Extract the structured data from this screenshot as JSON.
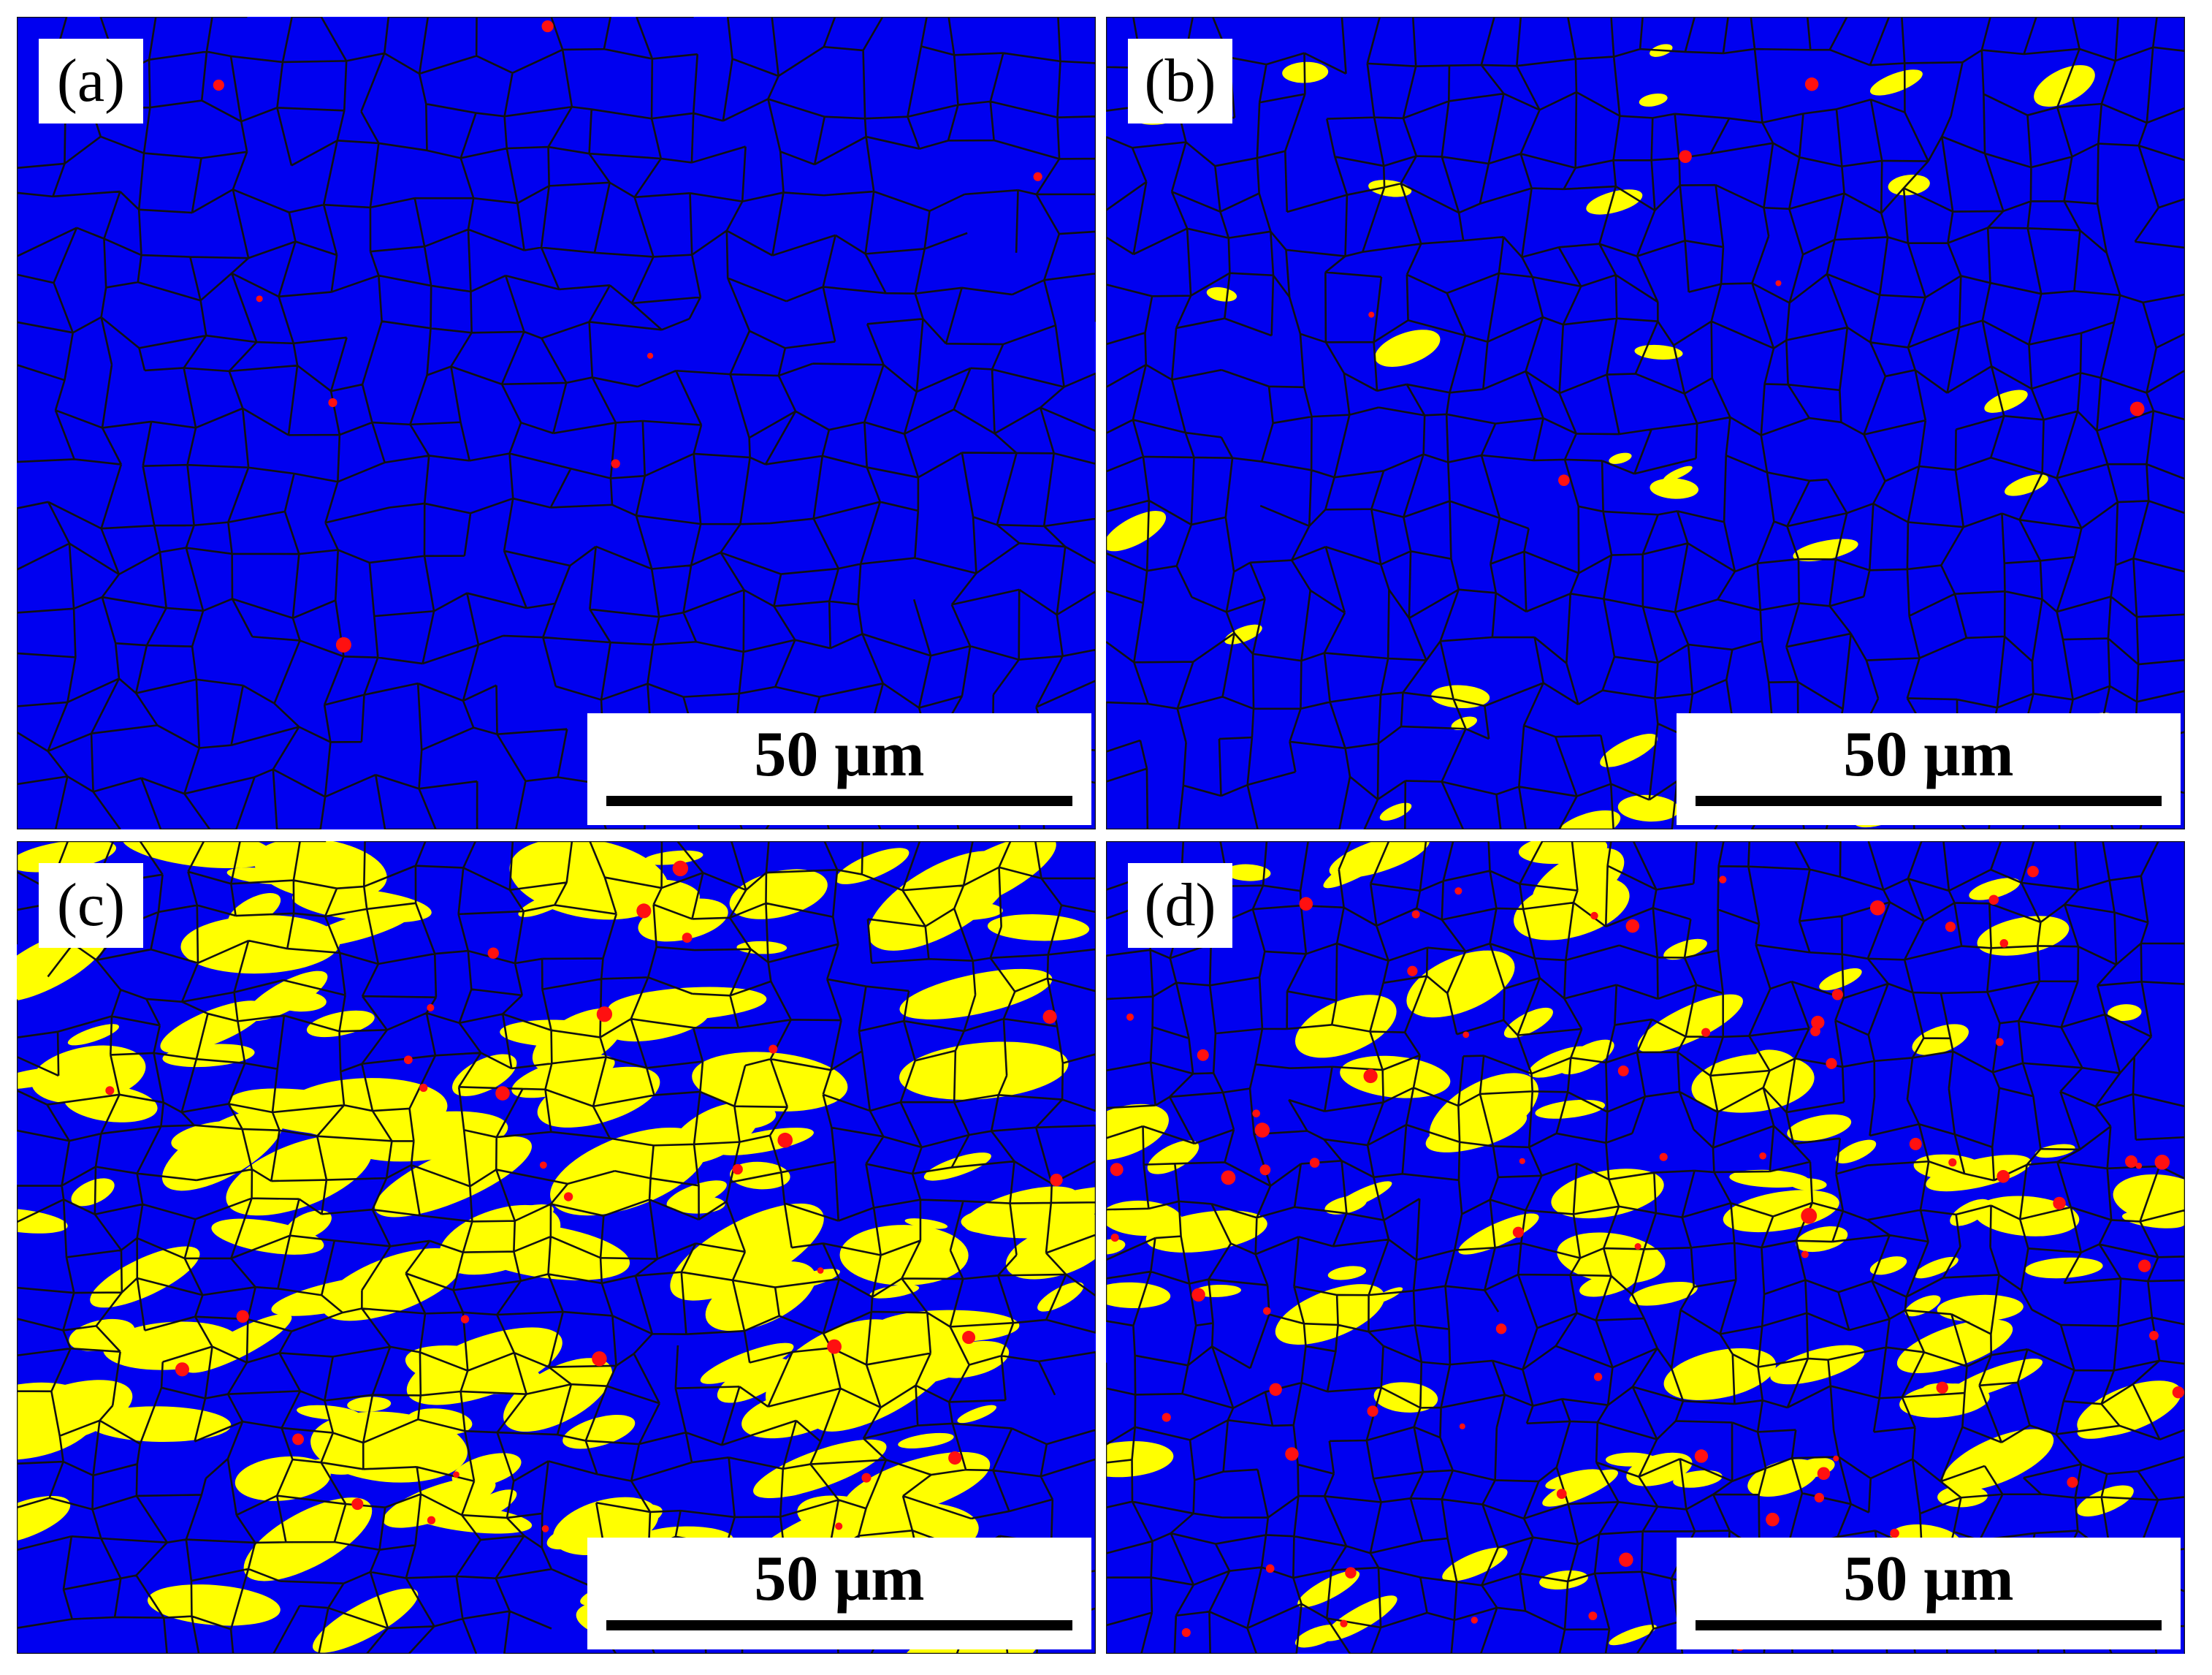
{
  "panels": [
    {
      "label": "(a)",
      "scale_bar": "50 μm"
    },
    {
      "label": "(b)",
      "scale_bar": "50 μm"
    },
    {
      "label": "(c)",
      "scale_bar": "50 μm"
    },
    {
      "label": "(d)",
      "scale_bar": "50 μm"
    }
  ]
}
